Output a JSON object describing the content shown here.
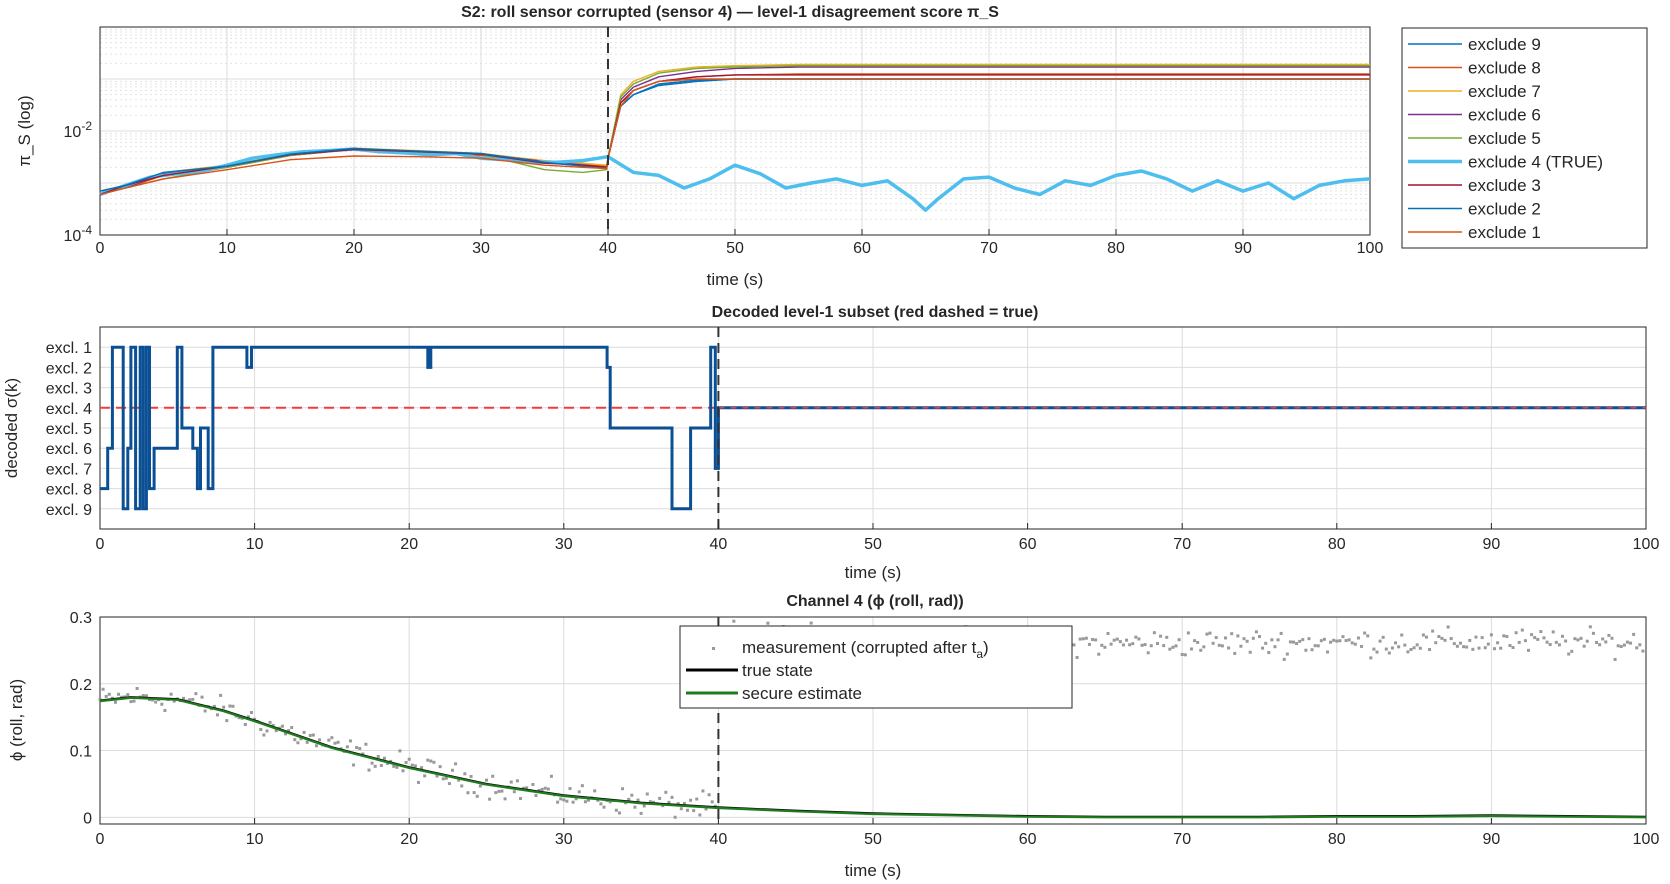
{
  "chart_data": [
    {
      "type": "line",
      "title": "S2: roll sensor corrupted (sensor 4)  —  level-1 disagreement score π_S",
      "xlabel": "time (s)",
      "ylabel": "π_S  (log)",
      "xlim": [
        0,
        100
      ],
      "ylim": [
        0.0001,
        1
      ],
      "yscale": "log",
      "xticks": [
        "0",
        "10",
        "20",
        "30",
        "40",
        "50",
        "60",
        "70",
        "80",
        "90",
        "100"
      ],
      "yticks": [
        {
          "base": "10",
          "exp": "-4"
        },
        {
          "base": "10",
          "exp": "-2"
        }
      ],
      "grid": true,
      "legend_position": "outside-right",
      "vline_x": 40,
      "series": [
        {
          "name": "exclude 9",
          "color": "#0072BD",
          "x": [
            0,
            2,
            5,
            10,
            15,
            20,
            25,
            30,
            35,
            38,
            39.9,
            40,
            41,
            42,
            44,
            47,
            50,
            55,
            60,
            70,
            80,
            90,
            100
          ],
          "values": [
            0.0007,
            0.0008,
            0.0015,
            0.002,
            0.0035,
            0.0045,
            0.004,
            0.0035,
            0.0025,
            0.0022,
            0.002,
            0.003,
            0.03,
            0.05,
            0.08,
            0.095,
            0.1,
            0.1,
            0.1,
            0.1,
            0.1,
            0.1,
            0.1
          ]
        },
        {
          "name": "exclude 8",
          "color": "#D95319",
          "x": [
            0,
            2,
            5,
            10,
            15,
            20,
            25,
            30,
            35,
            38,
            39.9,
            40,
            41,
            42,
            44,
            47,
            50,
            55,
            60,
            70,
            80,
            90,
            100
          ],
          "values": [
            0.0006,
            0.0008,
            0.0014,
            0.0021,
            0.0034,
            0.0044,
            0.0039,
            0.0034,
            0.0026,
            0.0023,
            0.0021,
            0.003,
            0.035,
            0.06,
            0.09,
            0.11,
            0.12,
            0.125,
            0.125,
            0.125,
            0.125,
            0.125,
            0.125
          ]
        },
        {
          "name": "exclude 7",
          "color": "#EDB120",
          "x": [
            0,
            2,
            5,
            10,
            15,
            20,
            25,
            30,
            35,
            38,
            39.9,
            40,
            41,
            42,
            44,
            47,
            50,
            55,
            60,
            70,
            80,
            90,
            100
          ],
          "values": [
            0.0007,
            0.0009,
            0.0016,
            0.0022,
            0.0036,
            0.0047,
            0.0042,
            0.0037,
            0.0027,
            0.0024,
            0.0022,
            0.003,
            0.05,
            0.09,
            0.14,
            0.17,
            0.18,
            0.19,
            0.19,
            0.19,
            0.19,
            0.19,
            0.19
          ]
        },
        {
          "name": "exclude 6",
          "color": "#7E2F8E",
          "x": [
            0,
            2,
            5,
            10,
            15,
            20,
            25,
            30,
            35,
            38,
            39.9,
            40,
            41,
            42,
            44,
            47,
            50,
            55,
            60,
            70,
            80,
            90,
            100
          ],
          "values": [
            0.0006,
            0.0008,
            0.0015,
            0.002,
            0.0034,
            0.0045,
            0.004,
            0.0036,
            0.0026,
            0.0022,
            0.002,
            0.003,
            0.04,
            0.07,
            0.11,
            0.14,
            0.16,
            0.17,
            0.17,
            0.17,
            0.17,
            0.17,
            0.17
          ]
        },
        {
          "name": "exclude 5",
          "color": "#77AC30",
          "x": [
            0,
            2,
            5,
            10,
            15,
            20,
            25,
            30,
            35,
            38,
            39.9,
            40,
            41,
            42,
            44,
            47,
            50,
            55,
            60,
            70,
            80,
            90,
            100
          ],
          "values": [
            0.0006,
            0.0008,
            0.0012,
            0.002,
            0.0034,
            0.0045,
            0.004,
            0.0036,
            0.0018,
            0.0016,
            0.0018,
            0.003,
            0.045,
            0.08,
            0.13,
            0.16,
            0.17,
            0.18,
            0.18,
            0.18,
            0.18,
            0.18,
            0.18
          ]
        },
        {
          "name": "exclude 4 (TRUE)",
          "color": "#4DBEEE",
          "bold": true,
          "x": [
            0,
            2,
            4,
            6,
            8,
            10,
            12,
            14,
            16,
            18,
            20,
            22,
            24,
            26,
            28,
            30,
            32,
            34,
            36,
            38,
            40,
            42,
            44,
            46,
            48,
            50,
            52,
            54,
            56,
            58,
            60,
            62,
            64,
            65,
            66,
            68,
            70,
            72,
            74,
            76,
            78,
            80,
            82,
            84,
            86,
            88,
            90,
            92,
            94,
            96,
            98,
            100
          ],
          "values": [
            0.0006,
            0.0009,
            0.0013,
            0.0015,
            0.0017,
            0.0022,
            0.003,
            0.0035,
            0.004,
            0.0042,
            0.0045,
            0.004,
            0.0038,
            0.0035,
            0.0037,
            0.003,
            0.0028,
            0.0025,
            0.0025,
            0.0027,
            0.0032,
            0.0016,
            0.0014,
            0.0008,
            0.0012,
            0.0022,
            0.0015,
            0.0008,
            0.001,
            0.0012,
            0.0009,
            0.0011,
            0.0005,
            0.0003,
            0.0005,
            0.0012,
            0.0013,
            0.0008,
            0.0006,
            0.0011,
            0.0009,
            0.0014,
            0.0017,
            0.0012,
            0.0007,
            0.0011,
            0.0007,
            0.001,
            0.0005,
            0.0009,
            0.0011,
            0.0012
          ]
        },
        {
          "name": "exclude 3",
          "color": "#A2142F",
          "x": [
            0,
            2,
            5,
            10,
            15,
            20,
            25,
            30,
            35,
            38,
            39.9,
            40,
            41,
            42,
            44,
            47,
            50,
            55,
            60,
            70,
            80,
            90,
            100
          ],
          "values": [
            0.0006,
            0.0009,
            0.0014,
            0.0021,
            0.0035,
            0.0044,
            0.004,
            0.0036,
            0.0024,
            0.0022,
            0.002,
            0.003,
            0.035,
            0.06,
            0.09,
            0.11,
            0.12,
            0.12,
            0.12,
            0.12,
            0.12,
            0.12,
            0.12
          ]
        },
        {
          "name": "exclude 2",
          "color": "#0072BD",
          "x": [
            0,
            2,
            5,
            10,
            15,
            20,
            25,
            30,
            35,
            38,
            39.9,
            40,
            41,
            42,
            44,
            47,
            50,
            55,
            60,
            70,
            80,
            90,
            100
          ],
          "values": [
            0.0007,
            0.0009,
            0.0016,
            0.0021,
            0.0036,
            0.0046,
            0.0041,
            0.0037,
            0.0025,
            0.0021,
            0.0019,
            0.003,
            0.03,
            0.05,
            0.075,
            0.09,
            0.1,
            0.1,
            0.1,
            0.1,
            0.1,
            0.1,
            0.1
          ]
        },
        {
          "name": "exclude 1",
          "color": "#D95319",
          "x": [
            0,
            2,
            5,
            10,
            15,
            20,
            25,
            30,
            35,
            38,
            39.9,
            40,
            41,
            42,
            44,
            47,
            50,
            55,
            60,
            70,
            80,
            90,
            100
          ],
          "values": [
            0.0006,
            0.0008,
            0.0012,
            0.0018,
            0.0028,
            0.0033,
            0.0032,
            0.003,
            0.0022,
            0.002,
            0.0019,
            0.003,
            0.03,
            0.06,
            0.09,
            0.1,
            0.1,
            0.1,
            0.1,
            0.1,
            0.1,
            0.1,
            0.1
          ]
        }
      ]
    },
    {
      "type": "line",
      "title": "Decoded level-1 subset (red dashed = true)",
      "xlabel": "time (s)",
      "ylabel": "decoded σ(k)",
      "xlim": [
        0,
        100
      ],
      "ylim": [
        10,
        0
      ],
      "xticks": [
        "0",
        "10",
        "20",
        "30",
        "40",
        "50",
        "60",
        "70",
        "80",
        "90",
        "100"
      ],
      "categories": [
        "excl. 1",
        "excl. 2",
        "excl. 3",
        "excl. 4",
        "excl. 5",
        "excl. 6",
        "excl. 7",
        "excl. 8",
        "excl. 9"
      ],
      "grid": true,
      "vline_x": 40,
      "true_value": 4,
      "decoded": {
        "x": [
          0,
          0.5,
          0.8,
          1.2,
          1.5,
          1.8,
          2.0,
          2.3,
          2.6,
          2.8,
          3.0,
          3.2,
          3.5,
          4,
          5,
          5.3,
          5.6,
          6,
          6.3,
          6.5,
          7,
          7.3,
          7.6,
          9.5,
          9.8,
          10,
          21.2,
          21.4,
          32.8,
          33,
          37,
          38.2,
          39.5,
          39.8,
          40,
          100
        ],
        "values": [
          8,
          6,
          1,
          1,
          9,
          6,
          1,
          9,
          1,
          9,
          1,
          8,
          6,
          6,
          1,
          5,
          5,
          6,
          8,
          5,
          8,
          1,
          1,
          2,
          1,
          1,
          2,
          1,
          2,
          5,
          9,
          5,
          1,
          7,
          4,
          4
        ]
      }
    },
    {
      "type": "scatter",
      "title": "Channel 4 (ϕ (roll, rad))",
      "xlabel": "time (s)",
      "ylabel": "ϕ (roll, rad)",
      "xlim": [
        0,
        100
      ],
      "ylim": [
        -0.01,
        0.3
      ],
      "xticks": [
        "0",
        "10",
        "20",
        "30",
        "40",
        "50",
        "60",
        "70",
        "80",
        "90",
        "100"
      ],
      "yticks": [
        "0",
        "0.1",
        "0.2",
        "0.3"
      ],
      "grid": true,
      "vline_x": 40,
      "legend_position": "top-center",
      "measurement_label_prefix": "measurement (corrupted after t",
      "measurement_label_sub": "a",
      "measurement_label_suffix": ")",
      "series": [
        {
          "name": "measurement (corrupted after t_a)",
          "color": "#999999",
          "attack_offset": 0.26,
          "noise": 0.012
        },
        {
          "name": "true state",
          "color": "#000000",
          "x": [
            0,
            2,
            5,
            8,
            10,
            15,
            20,
            25,
            30,
            35,
            40,
            45,
            50,
            55,
            60,
            65,
            70,
            75,
            80,
            85,
            90,
            95,
            100
          ],
          "values": [
            0.175,
            0.18,
            0.177,
            0.16,
            0.145,
            0.105,
            0.075,
            0.05,
            0.033,
            0.022,
            0.015,
            0.01,
            0.006,
            0.004,
            0.002,
            0.001,
            0.001,
            0.001,
            0.002,
            0.002,
            0.003,
            0.002,
            0.001
          ]
        },
        {
          "name": "secure estimate",
          "color": "#1E7B1E",
          "x": [
            0,
            2,
            5,
            8,
            10,
            15,
            20,
            25,
            30,
            35,
            40,
            45,
            50,
            55,
            60,
            65,
            70,
            75,
            80,
            85,
            90,
            95,
            100
          ],
          "values": [
            0.174,
            0.179,
            0.176,
            0.159,
            0.144,
            0.104,
            0.074,
            0.049,
            0.032,
            0.021,
            0.014,
            0.009,
            0.005,
            0.003,
            0.001,
            0.0,
            0.0,
            0.0,
            0.001,
            0.001,
            0.002,
            0.001,
            0.0
          ]
        }
      ]
    }
  ]
}
